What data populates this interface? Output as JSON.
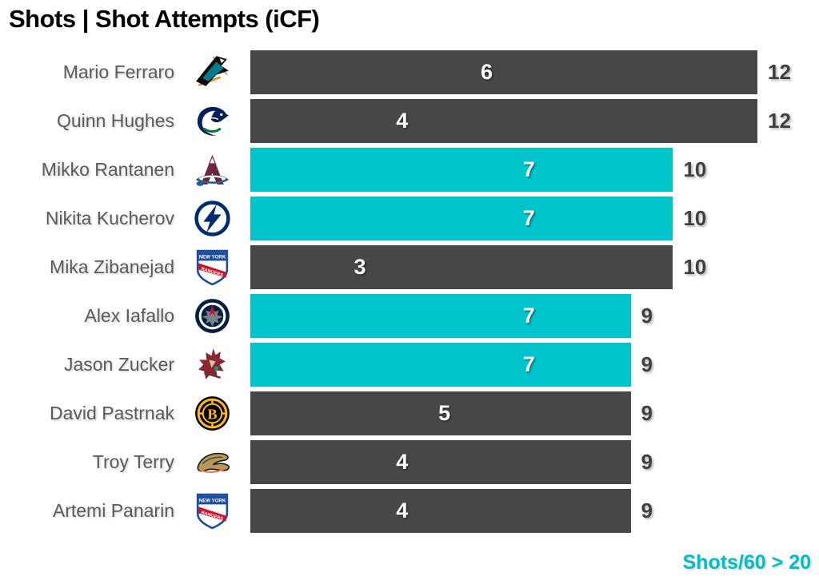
{
  "title": "Shots | Shot Attempts (iCF)",
  "footer_note": "Shots/60 > 20",
  "colors": {
    "bar_default": "#474747",
    "bar_highlight": "#00c4cc",
    "inside_label": "#ffffff",
    "outside_label": "#404040",
    "player_name": "#5a5a5a",
    "footer": "#00bfca",
    "title": "#000000"
  },
  "chart_data": {
    "type": "bar",
    "orientation": "horizontal",
    "title": "Shots | Shot Attempts (iCF)",
    "xlim": [
      0,
      12
    ],
    "grid": false,
    "annotation": "Shots/60 > 20",
    "highlight_note": "teal bars mark players with Shots/60 > 20",
    "categories": [
      "Mario Ferraro",
      "Quinn Hughes",
      "Mikko Rantanen",
      "Nikita Kucherov",
      "Mika Zibanejad",
      "Alex Iafallo",
      "Jason Zucker",
      "David Pastrnak",
      "Troy Terry",
      "Artemi Panarin"
    ],
    "series": [
      {
        "name": "Shots",
        "values": [
          6,
          4,
          7,
          7,
          3,
          7,
          7,
          5,
          4,
          4
        ]
      },
      {
        "name": "Shot Attempts (iCF)",
        "values": [
          12,
          12,
          10,
          10,
          10,
          9,
          9,
          9,
          9,
          9
        ]
      }
    ],
    "rows": [
      {
        "player": "Mario Ferraro",
        "team": "San Jose Sharks",
        "logo": "sharks",
        "shots": 6,
        "icf": 12,
        "highlighted": false
      },
      {
        "player": "Quinn Hughes",
        "team": "Vancouver Canucks",
        "logo": "canucks",
        "shots": 4,
        "icf": 12,
        "highlighted": false
      },
      {
        "player": "Mikko Rantanen",
        "team": "Colorado Avalanche",
        "logo": "avalanche",
        "shots": 7,
        "icf": 10,
        "highlighted": true
      },
      {
        "player": "Nikita Kucherov",
        "team": "Tampa Bay Lightning",
        "logo": "lightning",
        "shots": 7,
        "icf": 10,
        "highlighted": true
      },
      {
        "player": "Mika Zibanejad",
        "team": "New York Rangers",
        "logo": "rangers",
        "shots": 3,
        "icf": 10,
        "highlighted": false
      },
      {
        "player": "Alex Iafallo",
        "team": "Winnipeg Jets",
        "logo": "jets",
        "shots": 7,
        "icf": 9,
        "highlighted": true
      },
      {
        "player": "Jason Zucker",
        "team": "Arizona Coyotes",
        "logo": "coyotes",
        "shots": 7,
        "icf": 9,
        "highlighted": true
      },
      {
        "player": "David Pastrnak",
        "team": "Boston Bruins",
        "logo": "bruins",
        "shots": 5,
        "icf": 9,
        "highlighted": false
      },
      {
        "player": "Troy Terry",
        "team": "Anaheim Ducks",
        "logo": "ducks",
        "shots": 4,
        "icf": 9,
        "highlighted": false
      },
      {
        "player": "Artemi Panarin",
        "team": "New York Rangers",
        "logo": "rangers",
        "shots": 4,
        "icf": 9,
        "highlighted": false
      }
    ]
  }
}
